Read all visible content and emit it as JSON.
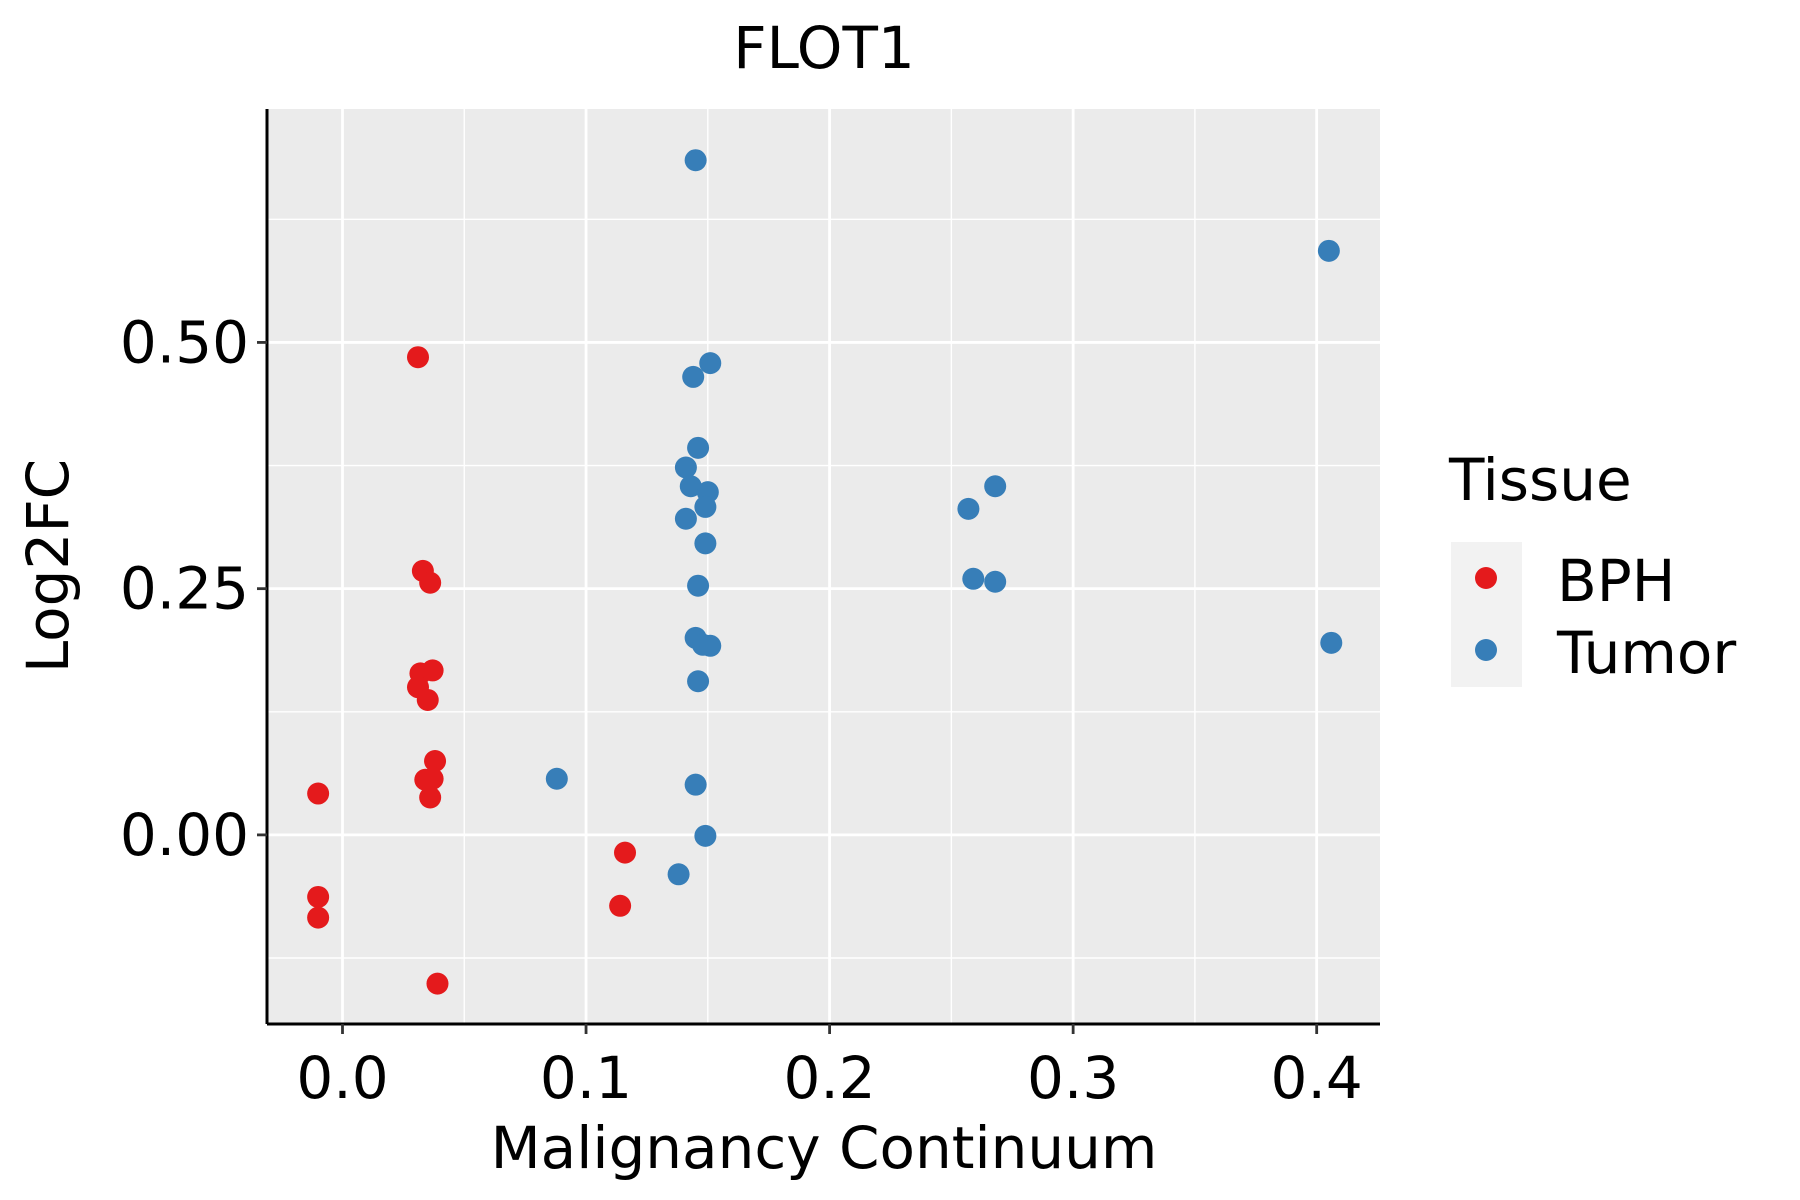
{
  "chart_data": {
    "type": "scatter",
    "title": "FLOT1",
    "xlabel": "Malignancy Continuum",
    "ylabel": "Log2FC",
    "xlim": [
      -0.031,
      0.426
    ],
    "ylim": [
      -0.192,
      0.737
    ],
    "x_ticks": [
      0.0,
      0.1,
      0.2,
      0.3,
      0.4
    ],
    "x_tick_labels": [
      "0.0",
      "0.1",
      "0.2",
      "0.3",
      "0.4"
    ],
    "y_ticks": [
      0.0,
      0.25,
      0.5
    ],
    "y_tick_labels": [
      "0.00",
      "0.25",
      "0.50"
    ],
    "x_minor_ticks": [
      0.05,
      0.15,
      0.25,
      0.35
    ],
    "y_minor_ticks": [
      -0.125,
      0.125,
      0.375,
      0.625
    ],
    "grid": true,
    "legend": {
      "title": "Tissue",
      "placement": "right",
      "entries": [
        "BPH",
        "Tumor"
      ]
    },
    "colors": {
      "BPH": "#E41A1C",
      "Tumor": "#377EB8",
      "panel": "#EBEBEB",
      "grid": "#FFFFFF"
    },
    "series": [
      {
        "name": "BPH",
        "points": [
          [
            -0.01,
            0.042
          ],
          [
            -0.01,
            -0.063
          ],
          [
            -0.01,
            -0.084
          ],
          [
            0.031,
            0.485
          ],
          [
            0.033,
            0.268
          ],
          [
            0.036,
            0.256
          ],
          [
            0.032,
            0.164
          ],
          [
            0.037,
            0.167
          ],
          [
            0.031,
            0.15
          ],
          [
            0.035,
            0.137
          ],
          [
            0.038,
            0.075
          ],
          [
            0.034,
            0.056
          ],
          [
            0.037,
            0.057
          ],
          [
            0.036,
            0.038
          ],
          [
            0.039,
            -0.151
          ],
          [
            0.116,
            -0.018
          ],
          [
            0.114,
            -0.072
          ]
        ]
      },
      {
        "name": "Tumor",
        "points": [
          [
            0.145,
            0.685
          ],
          [
            0.405,
            0.593
          ],
          [
            0.151,
            0.479
          ],
          [
            0.144,
            0.465
          ],
          [
            0.146,
            0.393
          ],
          [
            0.141,
            0.373
          ],
          [
            0.143,
            0.354
          ],
          [
            0.15,
            0.348
          ],
          [
            0.149,
            0.333
          ],
          [
            0.141,
            0.321
          ],
          [
            0.149,
            0.296
          ],
          [
            0.146,
            0.253
          ],
          [
            0.145,
            0.2
          ],
          [
            0.148,
            0.193
          ],
          [
            0.151,
            0.192
          ],
          [
            0.146,
            0.156
          ],
          [
            0.088,
            0.057
          ],
          [
            0.145,
            0.051
          ],
          [
            0.149,
            -0.001
          ],
          [
            0.138,
            -0.04
          ],
          [
            0.268,
            0.354
          ],
          [
            0.257,
            0.331
          ],
          [
            0.259,
            0.26
          ],
          [
            0.268,
            0.257
          ],
          [
            0.406,
            0.195
          ]
        ]
      }
    ]
  }
}
